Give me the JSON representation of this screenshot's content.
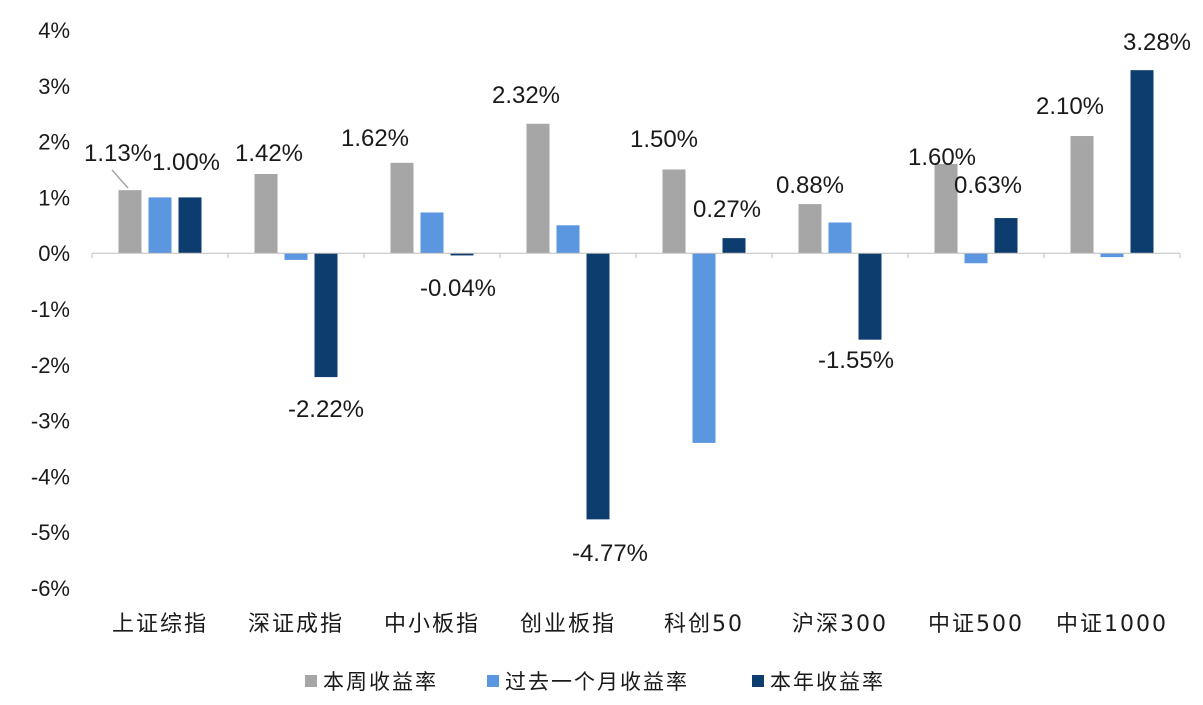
{
  "chart_data": {
    "type": "bar",
    "categories": [
      "上证综指",
      "深证成指",
      "中小板指",
      "创业板指",
      "科创50",
      "沪深300",
      "中证500",
      "中证1000"
    ],
    "series": [
      {
        "name": "本周收益率",
        "color": "#a6a6a6",
        "values": [
          1.13,
          1.42,
          1.62,
          2.32,
          1.5,
          0.88,
          1.6,
          2.1
        ],
        "labels": [
          "1.13%",
          "1.42%",
          "1.62%",
          "2.32%",
          "1.50%",
          "0.88%",
          "1.60%",
          "2.10%"
        ]
      },
      {
        "name": "过去一个月收益率",
        "color": "#5b96e0",
        "values": [
          1.0,
          -0.12,
          0.73,
          0.5,
          -3.4,
          0.55,
          -0.18,
          -0.07
        ],
        "labels": [
          "1.00%",
          "",
          "",
          "",
          "",
          "",
          "",
          ""
        ]
      },
      {
        "name": "本年收益率",
        "color": "#0c3d6e",
        "values": [
          1.0,
          -2.22,
          -0.04,
          -4.77,
          0.27,
          -1.55,
          0.63,
          3.28
        ],
        "labels": [
          "",
          "-2.22%",
          "-0.04%",
          "-4.77%",
          "0.27%",
          "-1.55%",
          "0.63%",
          "3.28%"
        ]
      }
    ],
    "yticks": [
      "4%",
      "3%",
      "2%",
      "1%",
      "0%",
      "-1%",
      "-2%",
      "-3%",
      "-4%",
      "-5%",
      "-6%"
    ],
    "ylim": [
      -6,
      4
    ],
    "grid": false,
    "legend_position": "bottom"
  }
}
